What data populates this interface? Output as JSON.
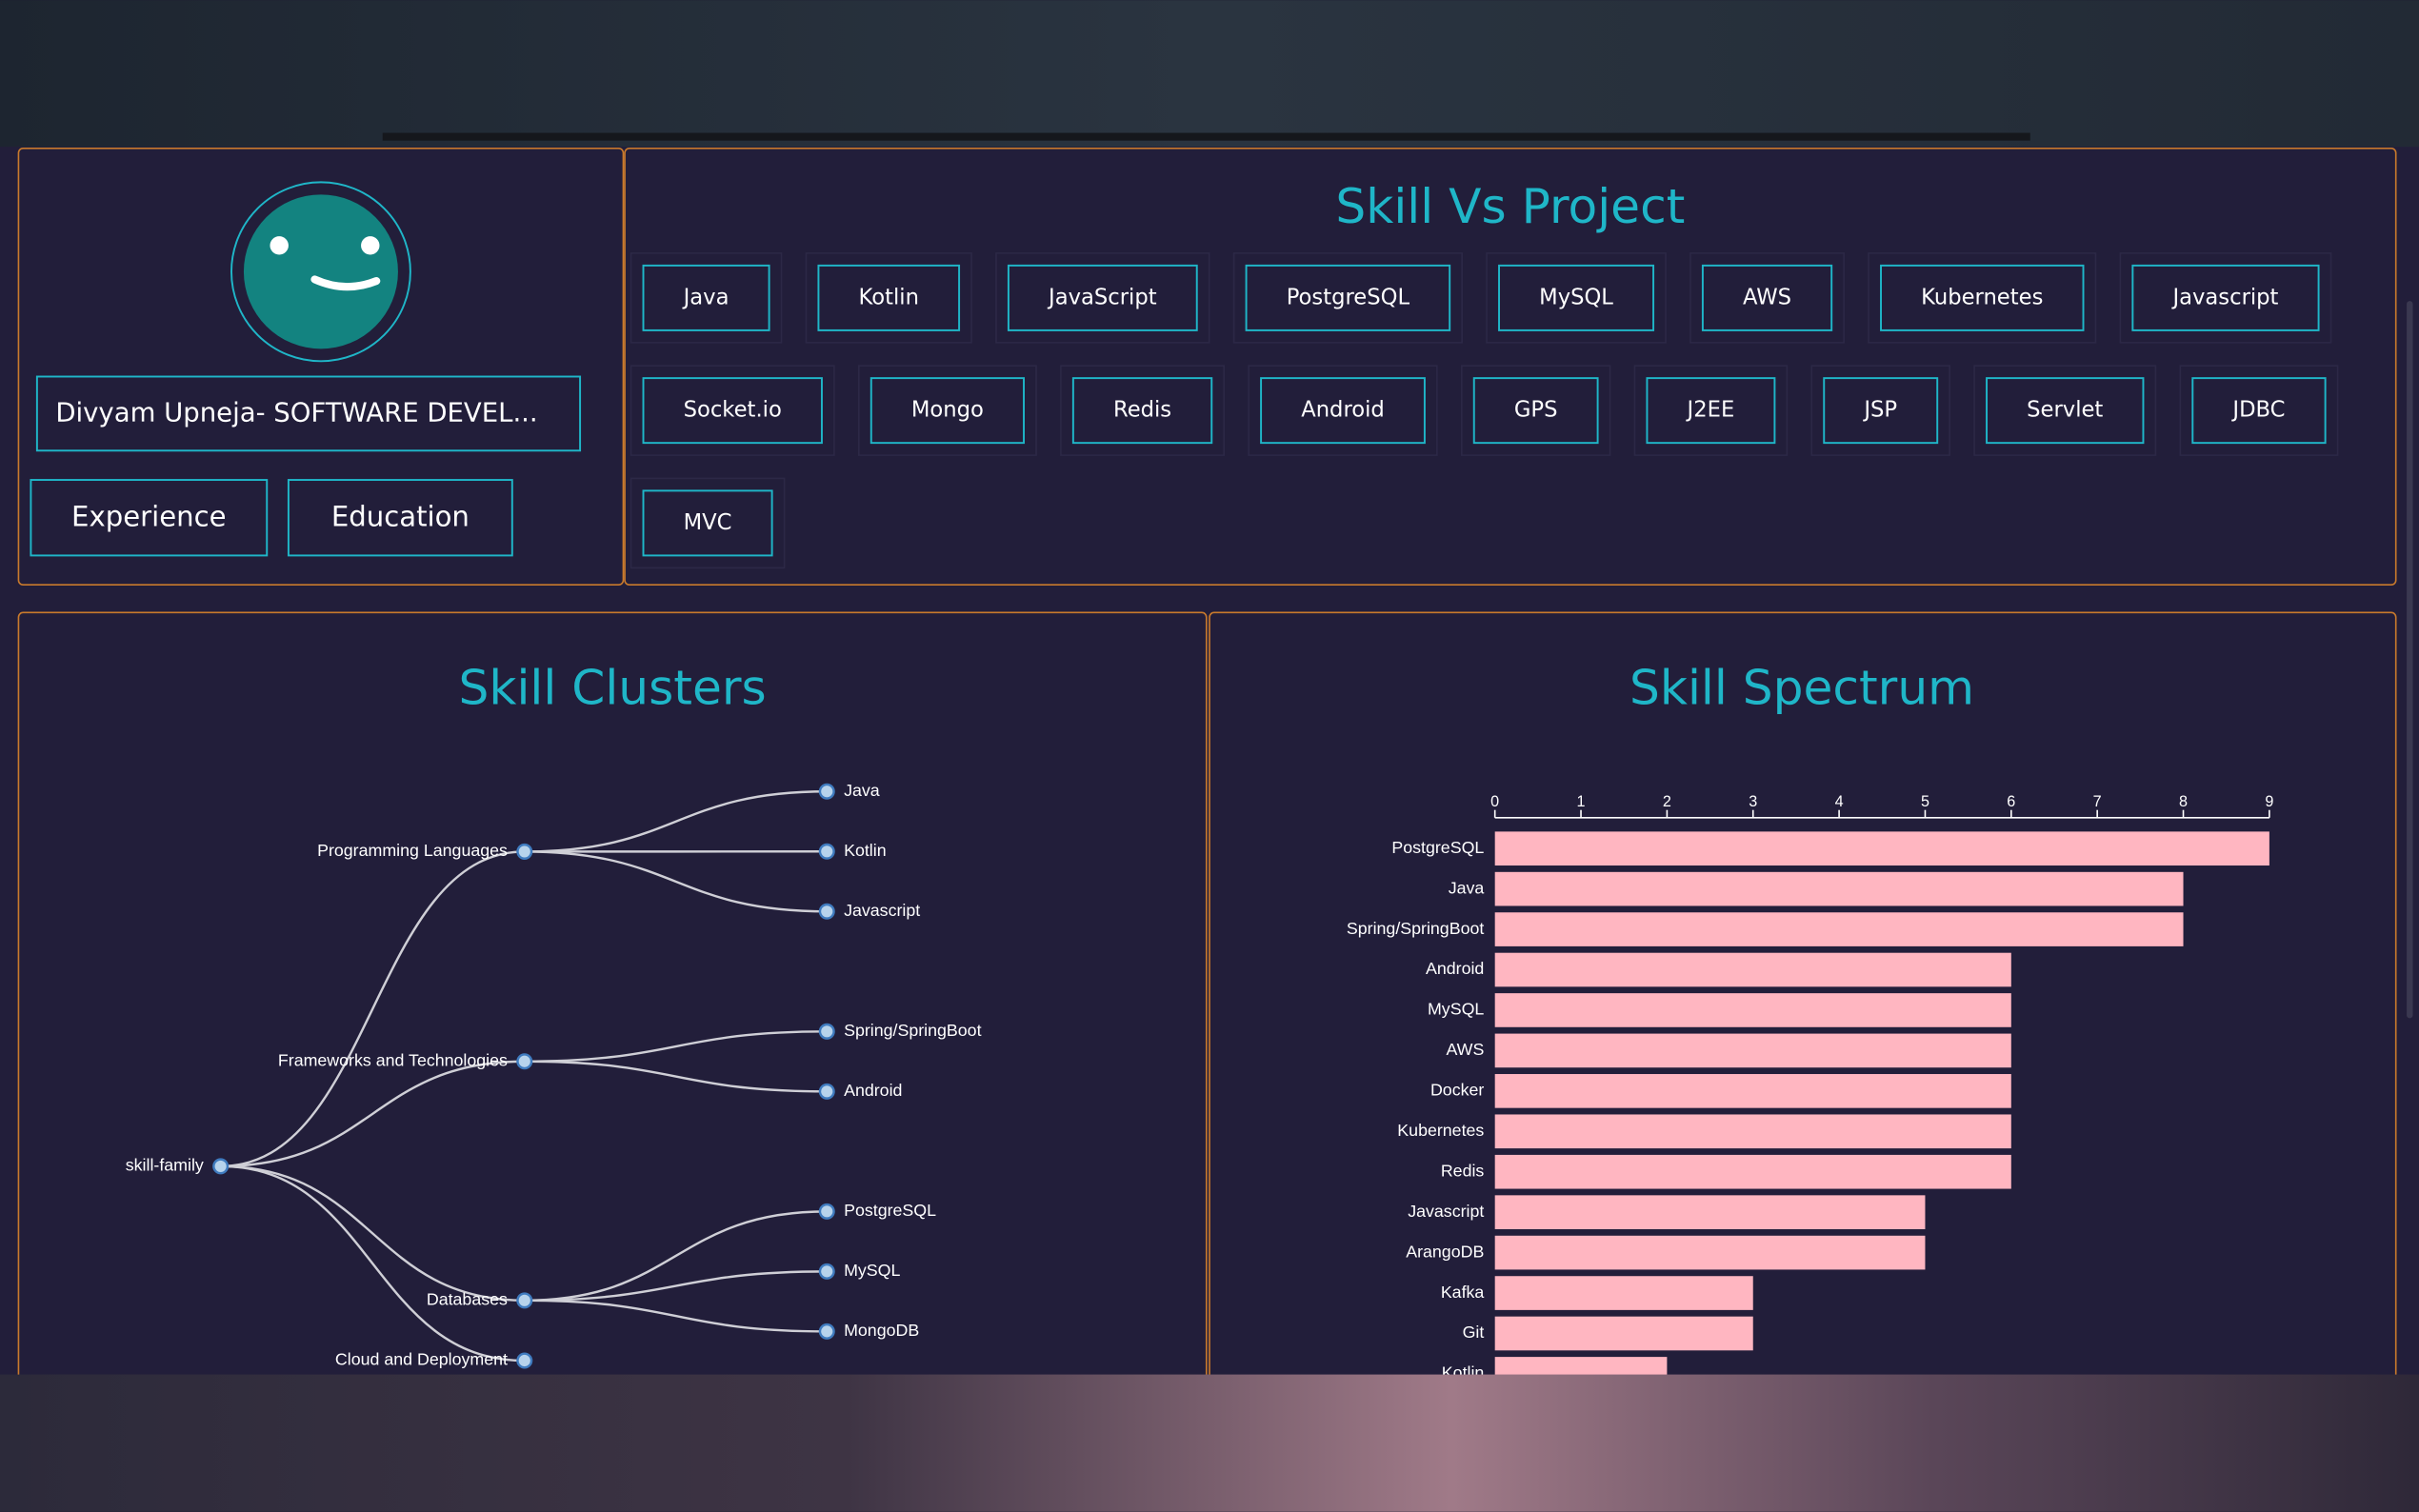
{
  "profile": {
    "name": "Divyam Upneja- SOFTWARE DEVEL...",
    "buttons": [
      "Experience",
      "Education"
    ]
  },
  "skill_vs_project": {
    "title": "Skill Vs Project",
    "skills": [
      "Java",
      "Kotlin",
      "JavaScript",
      "PostgreSQL",
      "MySQL",
      "AWS",
      "Kubernetes",
      "Javascript",
      "Socket.io",
      "Mongo",
      "Redis",
      "Android",
      "GPS",
      "J2EE",
      "JSP",
      "Servlet",
      "JDBC",
      "MVC"
    ]
  },
  "skill_clusters": {
    "title": "Skill Clusters",
    "root": "skill-family",
    "groups": [
      {
        "label": "Programming Languages",
        "children": [
          "Java",
          "Kotlin",
          "Javascript"
        ]
      },
      {
        "label": "Frameworks and Technologies",
        "children": [
          "Spring/SpringBoot",
          "Android"
        ]
      },
      {
        "label": "Databases",
        "children": [
          "PostgreSQL",
          "MySQL",
          "MongoDB"
        ]
      },
      {
        "label": "Cloud and Deployment"
      }
    ]
  },
  "chart_data": {
    "type": "bar",
    "orientation": "horizontal",
    "title": "Skill Spectrum",
    "categories": [
      "PostgreSQL",
      "Java",
      "Spring/SpringBoot",
      "Android",
      "MySQL",
      "AWS",
      "Docker",
      "Kubernetes",
      "Redis",
      "Javascript",
      "ArangoDB",
      "Kafka",
      "Git",
      "Kotlin"
    ],
    "values": [
      9,
      8,
      8,
      6,
      6,
      6,
      6,
      6,
      6,
      5,
      5,
      3,
      3,
      2
    ],
    "color": "#ffb6c1",
    "xlim": [
      0,
      9
    ],
    "xticks": [
      0,
      1,
      2,
      3,
      4,
      5,
      6,
      7,
      8,
      9
    ]
  }
}
